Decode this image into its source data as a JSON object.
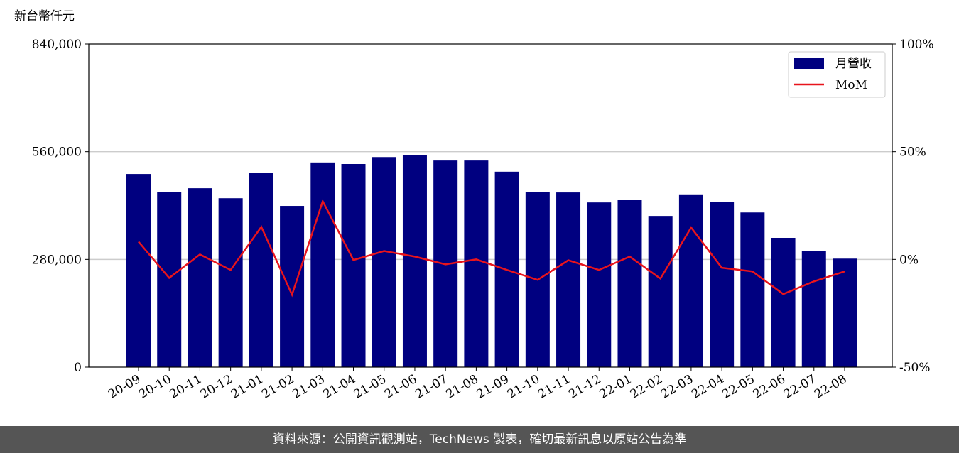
{
  "chart_data": {
    "type": "bar_line",
    "ylabel": "新台幣仟元",
    "source": "資料來源：公開資訊觀測站，TechNews 製表，確切最新訊息以原站公告為準",
    "categories": [
      "20-09",
      "20-10",
      "20-11",
      "20-12",
      "21-01",
      "21-02",
      "21-03",
      "21-04",
      "21-05",
      "21-06",
      "21-07",
      "21-08",
      "21-09",
      "21-10",
      "21-11",
      "21-12",
      "22-01",
      "22-02",
      "22-03",
      "22-04",
      "22-05",
      "22-06",
      "22-07",
      "22-08"
    ],
    "series": [
      {
        "name": "月營收",
        "type": "bar",
        "color": "#000080",
        "axis": "y",
        "values": [
          502000,
          456000,
          465000,
          439000,
          504000,
          419000,
          532000,
          528000,
          546000,
          552000,
          537000,
          537000,
          508000,
          456000,
          454000,
          428000,
          434000,
          393000,
          449000,
          430000,
          402000,
          336000,
          301000,
          282000
        ]
      },
      {
        "name": "MoM",
        "type": "line",
        "color": "#e8141c",
        "axis": "y2",
        "values": [
          8.2,
          -8.6,
          2.3,
          -4.9,
          15.1,
          -16.4,
          27.0,
          -0.3,
          3.9,
          1.3,
          -2.3,
          0,
          -4.9,
          -9.5,
          -0.4,
          -4.9,
          1.3,
          -8.9,
          14.8,
          -3.9,
          -5.6,
          -16.1,
          -10.2,
          -5.6
        ]
      }
    ],
    "ylim": [
      0,
      840000
    ],
    "yticks": [
      0,
      {
        "value": 280000,
        "label": "280,000"
      },
      {
        "value": 560000,
        "label": "560,000"
      },
      {
        "value": 840000,
        "label": "840,000"
      }
    ],
    "y2lim": [
      -50,
      100
    ],
    "y2ticks": [
      {
        "value": -50,
        "label": "-50%"
      },
      {
        "value": 0,
        "label": "0%"
      },
      {
        "value": 50,
        "label": "50%"
      },
      {
        "value": 100,
        "label": "100%"
      }
    ],
    "grid": true,
    "legend": "upper right"
  }
}
